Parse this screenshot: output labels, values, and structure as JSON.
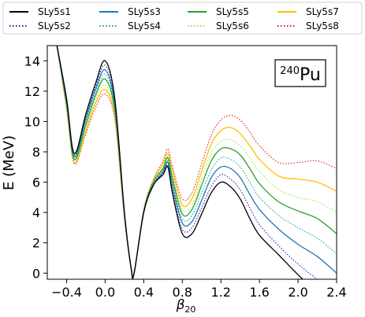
{
  "chart_data": {
    "type": "line",
    "title": "",
    "xlabel": "β20",
    "ylabel": "E (MeV)",
    "xlim": [
      -0.6,
      2.4
    ],
    "ylim": [
      -0.4,
      15
    ],
    "xticks": [
      -0.4,
      0.0,
      0.4,
      0.8,
      1.2,
      1.6,
      2.0,
      2.4
    ],
    "xtick_labels": [
      "−0.4",
      "0.0",
      "0.4",
      "0.8",
      "1.2",
      "1.6",
      "2.0",
      "2.4"
    ],
    "yticks": [
      0,
      2,
      4,
      6,
      8,
      10,
      12,
      14
    ],
    "ytick_labels": [
      "0",
      "2",
      "4",
      "6",
      "8",
      "10",
      "12",
      "14"
    ],
    "grid": false,
    "legend_placement": "top",
    "annotation": {
      "mass": "240",
      "element": "Pu"
    },
    "x": [
      -0.5,
      -0.4,
      -0.32,
      -0.2,
      -0.1,
      0.0,
      0.1,
      0.2,
      0.27,
      0.3,
      0.4,
      0.5,
      0.6,
      0.65,
      0.7,
      0.8,
      0.9,
      1.0,
      1.1,
      1.2,
      1.3,
      1.4,
      1.5,
      1.6,
      1.8,
      2.0,
      2.2,
      2.4
    ],
    "series": [
      {
        "name": "SLy5s1",
        "color": "#000000",
        "dash": "solid",
        "values": [
          15.0,
          11.5,
          7.9,
          10.5,
          12.5,
          14.0,
          11.5,
          4.0,
          0.3,
          0.0,
          4.0,
          5.8,
          6.5,
          7.0,
          5.2,
          2.6,
          2.6,
          3.9,
          5.3,
          6.0,
          5.7,
          4.9,
          3.6,
          2.5,
          1.2,
          -0.1,
          -1.3,
          -2.4
        ]
      },
      {
        "name": "SLy5s2",
        "color": "#2e1fa6",
        "dash": "dotted",
        "values": [
          15.0,
          11.4,
          7.8,
          10.4,
          12.3,
          13.7,
          11.3,
          3.9,
          0.3,
          0.0,
          4.0,
          5.8,
          6.6,
          7.1,
          5.4,
          2.9,
          3.0,
          4.3,
          5.7,
          6.5,
          6.2,
          5.5,
          4.3,
          3.2,
          1.8,
          0.6,
          -0.4,
          -1.3
        ]
      },
      {
        "name": "SLy5s3",
        "color": "#1f77b4",
        "dash": "solid",
        "values": [
          15.0,
          11.3,
          7.7,
          10.2,
          12.1,
          13.4,
          11.1,
          3.9,
          0.3,
          0.0,
          4.0,
          5.8,
          6.7,
          7.3,
          5.7,
          3.3,
          3.4,
          4.8,
          6.3,
          7.0,
          6.9,
          6.3,
          5.2,
          4.2,
          2.9,
          1.9,
          1.1,
          0.0
        ]
      },
      {
        "name": "SLy5s4",
        "color": "#17a589",
        "dash": "dotted",
        "values": [
          15.0,
          11.2,
          7.6,
          10.0,
          11.9,
          13.1,
          10.9,
          3.8,
          0.3,
          0.0,
          4.1,
          5.9,
          6.8,
          7.4,
          5.9,
          3.6,
          3.8,
          5.3,
          6.8,
          7.6,
          7.5,
          7.0,
          6.0,
          5.0,
          3.8,
          3.0,
          2.3,
          1.3
        ]
      },
      {
        "name": "SLy5s5",
        "color": "#2ca02c",
        "dash": "solid",
        "values": [
          15.0,
          11.1,
          7.5,
          9.8,
          11.7,
          12.8,
          10.7,
          3.8,
          0.3,
          0.0,
          4.1,
          6.0,
          6.9,
          7.6,
          6.2,
          3.9,
          4.2,
          5.8,
          7.4,
          8.2,
          8.2,
          7.8,
          6.9,
          5.9,
          4.7,
          4.1,
          3.6,
          2.6
        ]
      },
      {
        "name": "SLy5s6",
        "color": "#90ee52",
        "dash": "dotted",
        "values": [
          15.0,
          11.0,
          7.4,
          9.6,
          11.4,
          12.4,
          10.5,
          3.7,
          0.3,
          0.0,
          4.1,
          6.0,
          7.0,
          7.7,
          6.4,
          4.2,
          4.5,
          6.2,
          7.9,
          8.7,
          8.8,
          8.4,
          7.6,
          6.7,
          5.5,
          5.0,
          4.7,
          4.0
        ]
      },
      {
        "name": "SLy5s7",
        "color": "#ffc000",
        "dash": "solid",
        "values": [
          15.0,
          10.9,
          7.3,
          9.4,
          11.2,
          12.1,
          10.3,
          3.7,
          0.3,
          0.0,
          4.1,
          6.1,
          7.2,
          7.9,
          6.7,
          4.5,
          4.9,
          6.7,
          8.5,
          9.4,
          9.6,
          9.2,
          8.4,
          7.5,
          6.4,
          6.2,
          6.0,
          5.4
        ]
      },
      {
        "name": "SLy5s8",
        "color": "#e31a1c",
        "dash": "dotted",
        "values": [
          15.0,
          10.8,
          7.2,
          9.2,
          10.9,
          11.8,
          10.1,
          3.6,
          0.3,
          0.0,
          4.2,
          6.2,
          7.4,
          8.2,
          7.0,
          4.9,
          5.3,
          7.2,
          9.1,
          10.1,
          10.4,
          10.1,
          9.3,
          8.4,
          7.3,
          7.3,
          7.4,
          6.9
        ]
      }
    ]
  }
}
